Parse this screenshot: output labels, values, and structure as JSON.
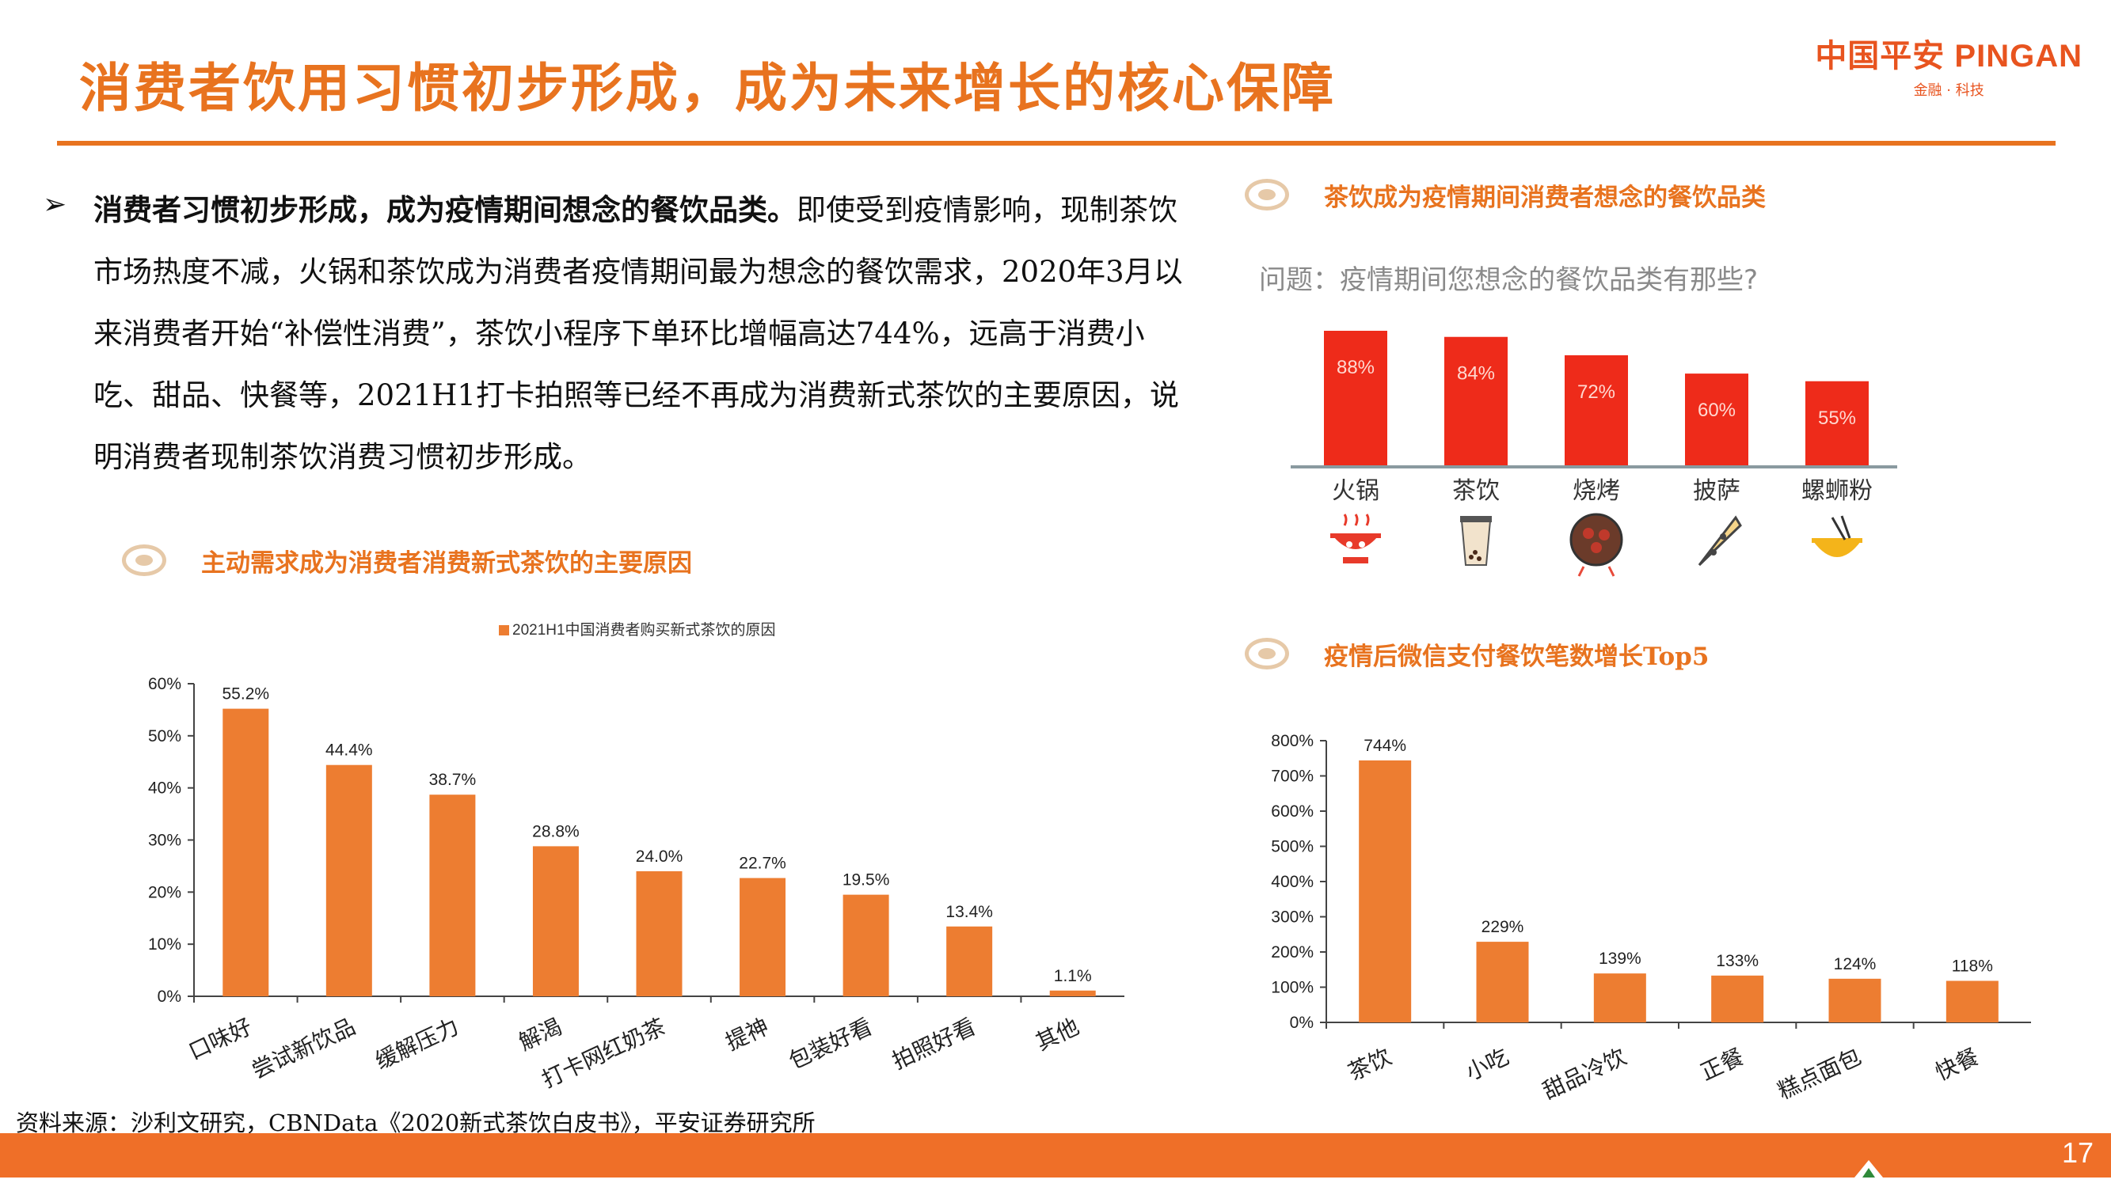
{
  "header": {
    "title": "消费者饮用习惯初步形成，成为未来增长的核心保障",
    "logo_main": "中国平安 PINGAN",
    "logo_sub": "金融 · 科技"
  },
  "body": {
    "bold_lead": "消费者习惯初步形成，成为疫情期间想念的餐饮品类。",
    "text": "即使受到疫情影响，现制茶饮市场热度不减，火锅和茶饮成为消费者疫情期间最为想念的餐饮需求，2020年3月以来消费者开始“补偿性消费”，茶饮小程序下单环比增幅高达744%，远高于消费小吃、甜品、快餐等，2021H1打卡拍照等已经不再成为消费新式茶饮的主要原因，说明消费者现制茶饮消费习惯初步形成。"
  },
  "sections": {
    "left_chart_title": "主动需求成为消费者消费新式茶饮的主要原因",
    "survey_title": "茶饮成为疫情期间消费者想念的餐饮品类",
    "right_chart_title": "疫情后微信支付餐饮笔数增长Top5"
  },
  "survey": {
    "question": "问题：疫情期间您想念的餐饮品类有那些?",
    "icons": [
      "hotpot-icon",
      "milk-tea-icon",
      "bbq-icon",
      "pizza-icon",
      "noodle-bowl-icon"
    ]
  },
  "chart_data": [
    {
      "id": "reasons",
      "type": "bar",
      "legend": "2021H1中国消费者购买新式茶饮的原因",
      "categories": [
        "口味好",
        "尝试新饮品",
        "缓解压力",
        "解渴",
        "打卡网红奶茶",
        "提神",
        "包装好看",
        "拍照好看",
        "其他"
      ],
      "values": [
        55.2,
        44.4,
        38.7,
        28.8,
        24.0,
        22.7,
        19.5,
        13.4,
        1.1
      ],
      "data_labels": [
        "55.2%",
        "44.4%",
        "38.7%",
        "28.8%",
        "24.0%",
        "22.7%",
        "19.5%",
        "13.4%",
        "1.1%"
      ],
      "ylim": [
        0,
        60
      ],
      "yticks": [
        "0%",
        "10%",
        "20%",
        "30%",
        "40%",
        "50%",
        "60%"
      ],
      "color": "#ed7d31"
    },
    {
      "id": "survey",
      "type": "bar",
      "categories": [
        "火锅",
        "茶饮",
        "烧烤",
        "披萨",
        "螺蛳粉"
      ],
      "values": [
        88,
        84,
        72,
        60,
        55
      ],
      "data_labels": [
        "88%",
        "84%",
        "72%",
        "60%",
        "55%"
      ],
      "color": "#ee2b1a"
    },
    {
      "id": "wechat_pay",
      "type": "bar",
      "categories": [
        "茶饮",
        "小吃",
        "甜品冷饮",
        "正餐",
        "糕点面包",
        "快餐"
      ],
      "values": [
        744,
        229,
        139,
        133,
        124,
        118
      ],
      "data_labels": [
        "744%",
        "229%",
        "139%",
        "133%",
        "124%",
        "118%"
      ],
      "ylim": [
        0,
        800
      ],
      "yticks": [
        "0%",
        "100%",
        "200%",
        "300%",
        "400%",
        "500%",
        "600%",
        "700%",
        "800%"
      ],
      "color": "#ed7d31"
    }
  ],
  "footer": {
    "source": "资料来源：沙利文研究，CBNData《2020新式茶饮白皮书》，平安证券研究所",
    "page_number": "17"
  },
  "colors": {
    "brand_orange": "#e8731f",
    "footer_orange": "#ef6f28",
    "bar_orange": "#ed7d31",
    "survey_red": "#ee2b1a"
  }
}
